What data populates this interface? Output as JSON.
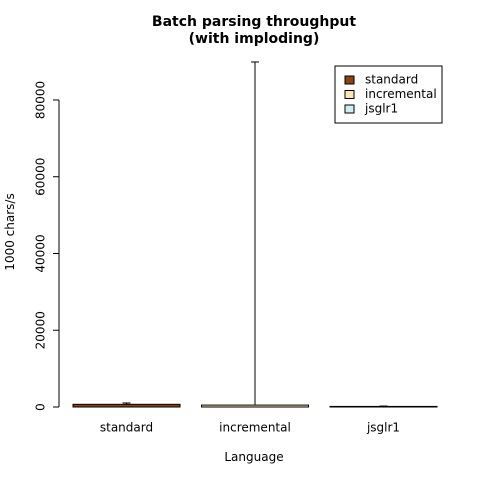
{
  "chart_data": {
    "type": "bar",
    "title": "Batch parsing throughput",
    "subtitle": "(with imploding)",
    "x_label": "Language",
    "y_label": "1000 chars/s",
    "categories": [
      "standard",
      "incremental",
      "jsglr1"
    ],
    "values": [
      700,
      500,
      150
    ],
    "errors": [
      350,
      89400,
      100
    ],
    "colors": [
      "#8b4513",
      "#ffe4b5",
      "#cdeff0"
    ],
    "legend": [
      "standard",
      "incremental",
      "jsglr1"
    ],
    "legend_position": "top-right",
    "ylim": [
      0,
      90000
    ],
    "yticks": [
      0,
      20000,
      40000,
      60000,
      80000
    ]
  }
}
